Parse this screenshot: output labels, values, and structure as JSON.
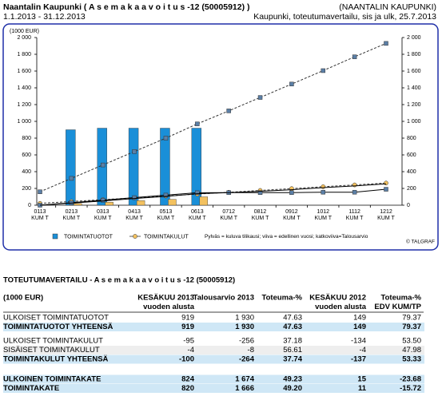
{
  "header": {
    "title": "Naantalin Kaupunki ( A s e m a k a a v o i t u s  -12 (50005912) )",
    "period": "1.1.2013 - 31.12.2013",
    "organization": "(NAANTALIN KAUPUNKI)",
    "report_info": "Kaupunki, toteutumavertailu, sis ja ulk, 25.7.2013"
  },
  "chart_data": {
    "type": "bar",
    "y_label": "(1000 EUR)",
    "categories": [
      "0113",
      "0213",
      "0313",
      "0413",
      "0513",
      "0613",
      "0712",
      "0812",
      "0912",
      "1012",
      "1112",
      "1212"
    ],
    "category_sublabels": [
      "KUM T",
      "KUM T",
      "KUM T",
      "KUM T",
      "KUM T",
      "KUM T",
      "KUM T",
      "KUM T",
      "KUM T",
      "KUM T",
      "KUM T",
      "KUM T"
    ],
    "series": [
      {
        "name": "TOIMINTATUOTOT",
        "type": "bar",
        "color": "#1a8fd8",
        "values": [
          0,
          900,
          919,
          919,
          919,
          919,
          null,
          null,
          null,
          null,
          null,
          null
        ]
      },
      {
        "name": "TOIMINTAKULUT",
        "type": "bar",
        "color": "#f3c15f",
        "values": [
          5,
          20,
          35,
          55,
          70,
          100,
          null,
          null,
          null,
          null,
          null,
          null
        ]
      },
      {
        "type": "line",
        "dashed": true,
        "marker": "square",
        "color": "#333333",
        "marker_color": "#5b7fa6",
        "values": [
          160,
          320,
          480,
          640,
          800,
          970,
          1125,
          1285,
          1445,
          1605,
          1770,
          1930
        ]
      },
      {
        "type": "line",
        "dashed": true,
        "marker": "circle",
        "color": "#333333",
        "marker_color": "#f3c15f",
        "values": [
          22,
          44,
          66,
          88,
          110,
          132,
          154,
          176,
          198,
          220,
          242,
          264
        ]
      },
      {
        "type": "line",
        "dashed": false,
        "marker": "square",
        "color": "#000000",
        "marker_color": "#5b7fa6",
        "values": [
          0,
          30,
          60,
          90,
          120,
          149,
          150,
          150,
          150,
          155,
          155,
          190
        ]
      },
      {
        "type": "line",
        "dashed": false,
        "marker": null,
        "color": "#000000",
        "values": [
          0,
          25,
          50,
          80,
          105,
          137,
          150,
          165,
          185,
          210,
          230,
          255
        ]
      }
    ],
    "ylim": [
      0,
      2000
    ],
    "yticks": [
      0,
      200,
      400,
      600,
      800,
      {
        "value": 1000,
        "label": "1 000"
      },
      {
        "value": 1200,
        "label": "1 200"
      },
      {
        "value": 1400,
        "label": "1 400"
      },
      {
        "value": 1600,
        "label": "1 600"
      },
      {
        "value": 1800,
        "label": "1 800"
      },
      {
        "value": 2000,
        "label": "2 000"
      }
    ],
    "grid": false,
    "note": "Pylväs = kuluva tilikausi; viiva = edellinen vuosi; katkoviiva=Talousarvio",
    "credit": "© TALGRAF"
  },
  "table": {
    "title": "TOTEUTUMAVERTAILU - A s e m a k a a v o i t u s  -12 (50005912)",
    "headers": [
      [
        "(1000 EUR)"
      ],
      [
        "KESÄKUU 2013",
        "vuoden alusta"
      ],
      [
        "Talousarvio 2013"
      ],
      [
        "Toteuma-%"
      ],
      [
        "KESÄKUU 2012",
        "vuoden alusta"
      ],
      [
        "Toteuma-%",
        "EDV KUM/TP"
      ]
    ],
    "rows": [
      {
        "cells": [
          "ULKOISET TOIMINTATUOTOT",
          "919",
          "1 930",
          "47.63",
          "149",
          "79.37"
        ],
        "bold": false,
        "shade": null
      },
      {
        "cells": [
          "TOIMINTATUOTOT YHTEENSÄ",
          "919",
          "1 930",
          "47.63",
          "149",
          "79.37"
        ],
        "bold": true,
        "shade": "#cfe7f6"
      },
      {
        "cells": [
          "ULKOISET TOIMINTAKULUT",
          "-95",
          "-256",
          "37.18",
          "-134",
          "53.50"
        ],
        "bold": false,
        "shade": null
      },
      {
        "cells": [
          "SISÄISET TOIMINTAKULUT",
          "-4",
          "-8",
          "56.61",
          "-4",
          "47.98"
        ],
        "bold": false,
        "shade": "#eeeeee"
      },
      {
        "cells": [
          "TOIMINTAKULUT YHTEENSÄ",
          "-100",
          "-264",
          "37.74",
          "-137",
          "53.33"
        ],
        "bold": true,
        "shade": "#cfe7f6"
      },
      {
        "cells": [
          "ULKOINEN TOIMINTAKATE",
          "824",
          "1 674",
          "49.23",
          "15",
          "-23.68"
        ],
        "bold": true,
        "shade": "#cfe7f6"
      },
      {
        "cells": [
          "TOIMINTAKATE",
          "820",
          "1 666",
          "49.20",
          "11",
          "-15.72"
        ],
        "bold": true,
        "shade": "#cfe7f6"
      }
    ]
  }
}
